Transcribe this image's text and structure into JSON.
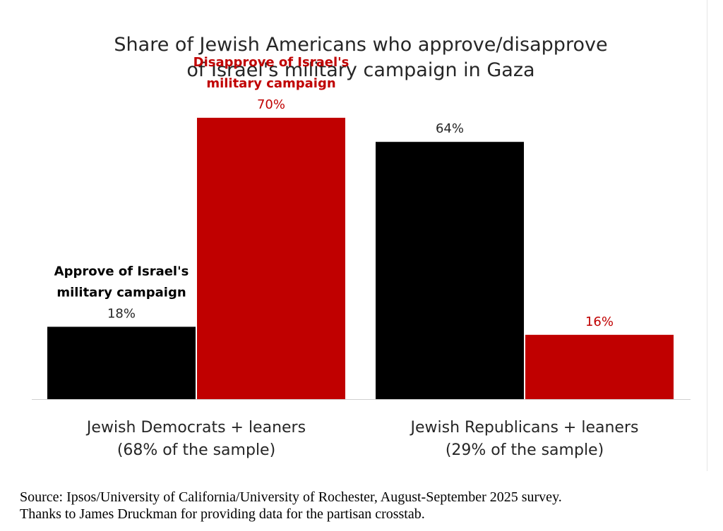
{
  "chart_data": {
    "type": "bar",
    "title": [
      "Share of Jewish Americans who approve/disapprove",
      "of Israel's military campaign in Gaza"
    ],
    "categories": [
      [
        "Jewish Democrats +  leaners",
        "(68% of the sample)"
      ],
      [
        "Jewish Republicans + leaners",
        "(29% of the sample)"
      ]
    ],
    "series": [
      {
        "name": "Approve",
        "color": "#000000",
        "values": [
          18,
          64
        ],
        "labels": [
          "18%",
          "64%"
        ],
        "label_color": "#262626"
      },
      {
        "name": "Disapprove",
        "color": "#c00000",
        "values": [
          70,
          16
        ],
        "labels": [
          "70%",
          "16%"
        ],
        "label_color": "#c00000"
      }
    ],
    "annotations": [
      {
        "text": [
          "Approve of Israel's",
          "military campaign"
        ],
        "color": "#000000",
        "series": "Approve",
        "category": 0
      },
      {
        "text": [
          "Disapprove  of Israel's",
          "military campaign"
        ],
        "color": "#c00000",
        "series": "Disapprove",
        "category": 0
      }
    ],
    "ylim": [
      0,
      80
    ],
    "xlabel": "",
    "ylabel": "",
    "grid": false,
    "legend": "none"
  },
  "source": {
    "line1": "Source: Ipsos/University of California/University of Rochester, August-September 2025 survey.",
    "line2": "Thanks to James Druckman for providing data for the partisan crosstab."
  }
}
